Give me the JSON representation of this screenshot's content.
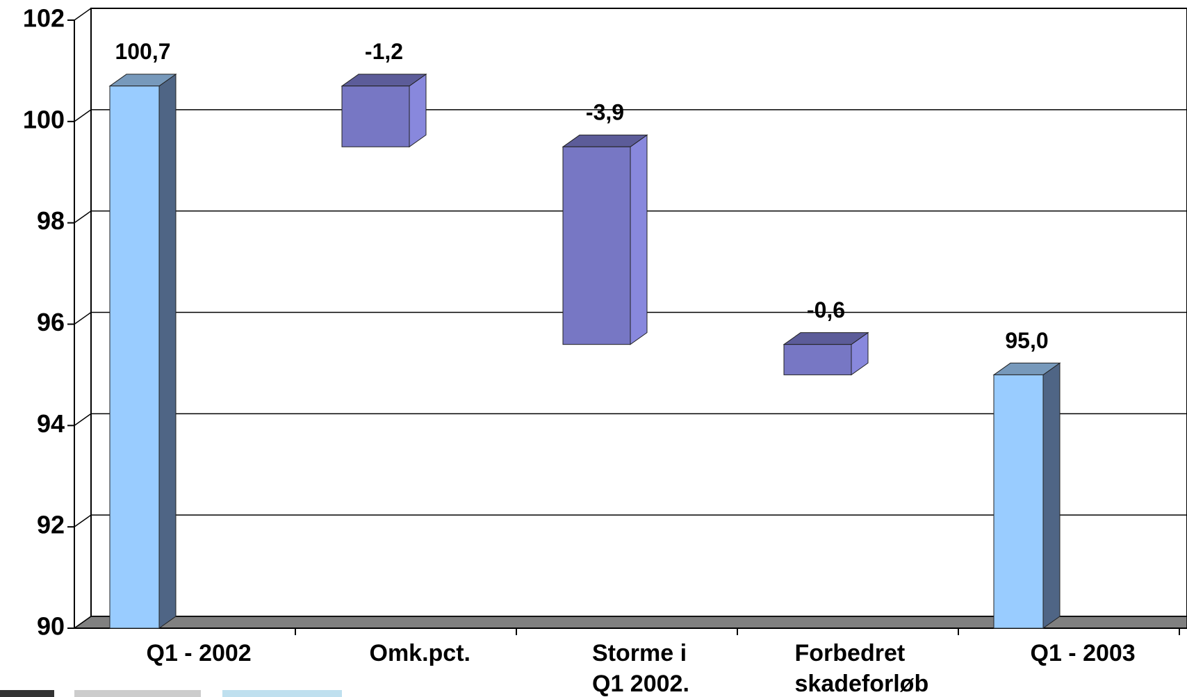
{
  "chart_data": {
    "type": "waterfall",
    "categories": [
      "Q1 - 2002",
      "Omk.pct.",
      "Storme i\nQ1 2002.",
      "Forbedret\nskadeforløb",
      "Q1 - 2003"
    ],
    "values": [
      100.7,
      -1.2,
      -3.9,
      -0.6,
      95.0
    ],
    "value_labels": [
      "100,7",
      "-1,2",
      "-3,9",
      "-0,6",
      "95,0"
    ],
    "total_color": "#99ccff",
    "delta_color": "#7777c4",
    "ylim": [
      90,
      102
    ],
    "yticks": [
      90,
      92,
      94,
      96,
      98,
      100,
      102
    ],
    "grid": true
  }
}
